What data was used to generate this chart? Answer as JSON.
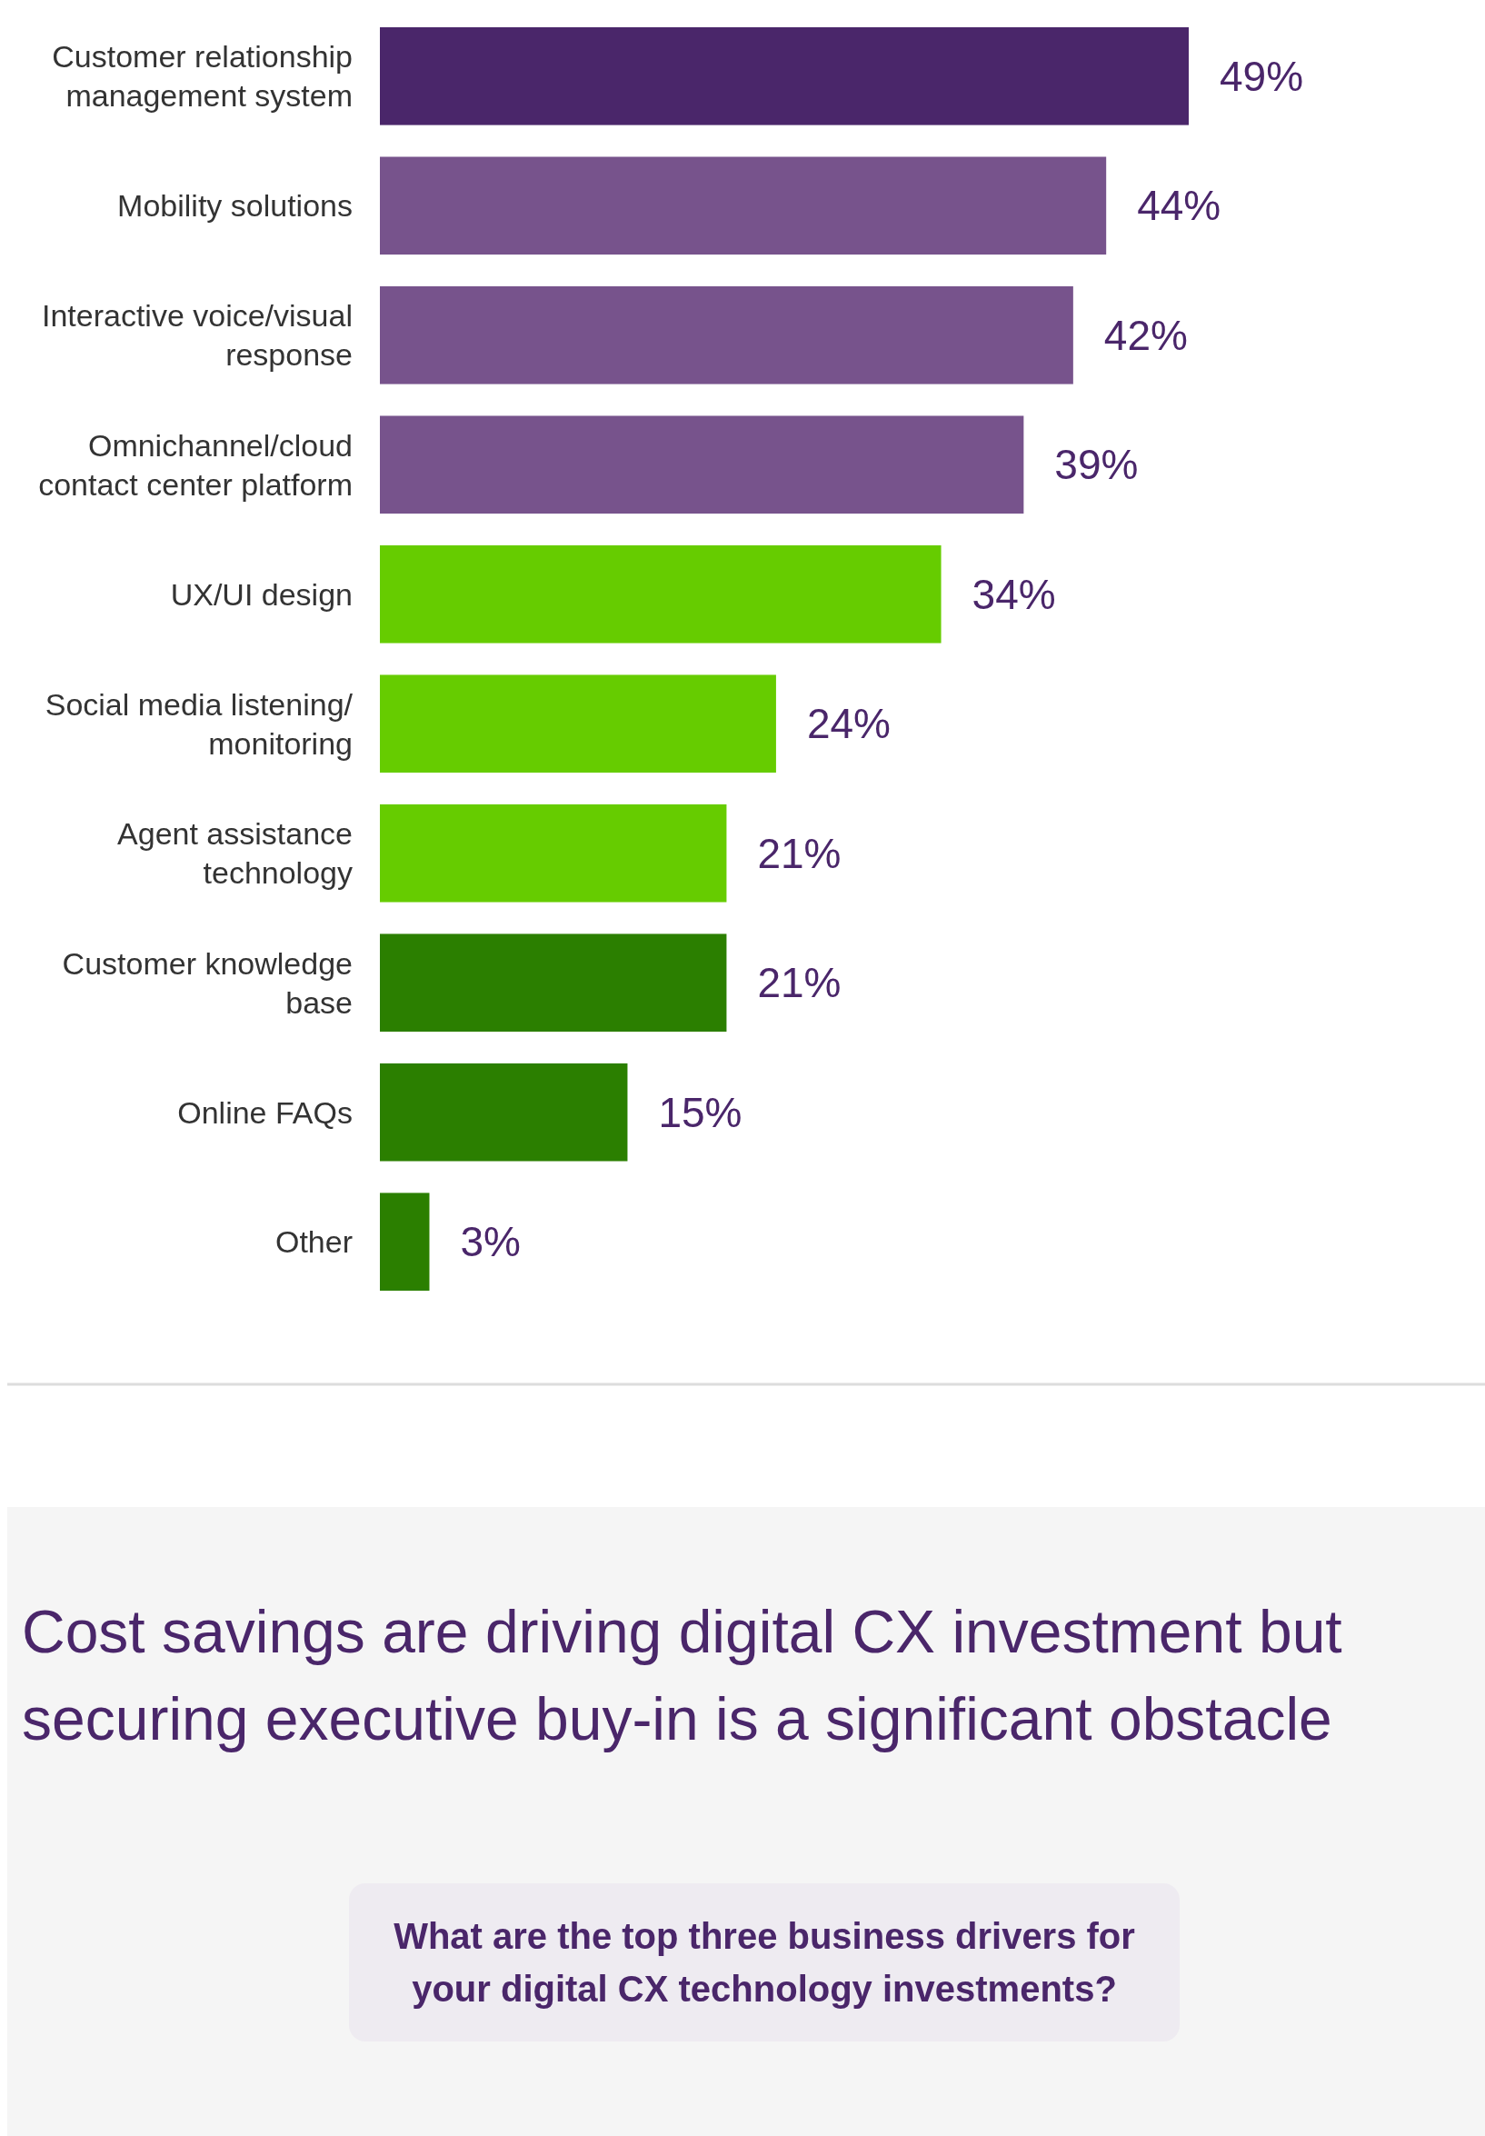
{
  "chart_data": {
    "type": "bar",
    "orientation": "horizontal",
    "categories": [
      "Customer relationship management system",
      "Mobility solutions",
      "Interactive voice/visual response",
      "Omnichannel/cloud contact center platform",
      "UX/UI design",
      "Social media listening/ monitoring",
      "Agent assistance technology",
      "Customer knowledge base",
      "Online FAQs",
      "Other"
    ],
    "values": [
      49,
      44,
      42,
      39,
      34,
      24,
      21,
      21,
      15,
      3
    ],
    "value_labels": [
      "49%",
      "44%",
      "42%",
      "39%",
      "34%",
      "24%",
      "21%",
      "21%",
      "15%",
      "3%"
    ],
    "colors": [
      "#4a266a",
      "#77538c",
      "#77538c",
      "#77538c",
      "#66cc00",
      "#66cc00",
      "#66cc00",
      "#2b7f00",
      "#2b7f00",
      "#2b7f00"
    ],
    "annotations": [
      "Cost savings are driving digital CX investment but securing executive buy-in is a significant obstacle",
      "What are the top three business drivers for your digital CX technology investments?"
    ]
  }
}
